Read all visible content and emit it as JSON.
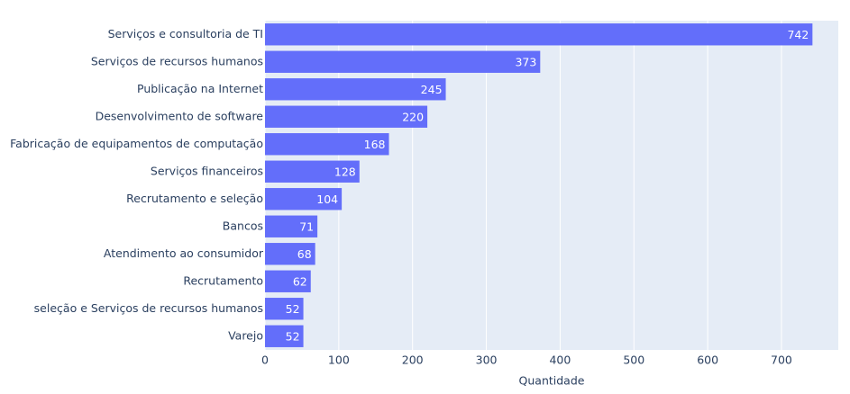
{
  "chart_data": {
    "type": "bar",
    "orientation": "horizontal",
    "categories": [
      "Serviços e consultoria de TI",
      "Serviços de recursos humanos",
      "Publicação na Internet",
      "Desenvolvimento de software",
      "Fabricação de equipamentos de computação",
      "Serviços financeiros",
      "Recrutamento e seleção",
      "Bancos",
      "Atendimento ao consumidor",
      "Recrutamento",
      "seleção e Serviços de recursos humanos",
      "Varejo"
    ],
    "values": [
      742,
      373,
      245,
      220,
      168,
      128,
      104,
      71,
      68,
      62,
      52,
      52
    ],
    "color": "#636efa",
    "xlabel": "Quantidade",
    "xlim": [
      0,
      777
    ],
    "xticks": [
      0,
      100,
      200,
      300,
      400,
      500,
      600,
      700
    ],
    "grid": true
  }
}
